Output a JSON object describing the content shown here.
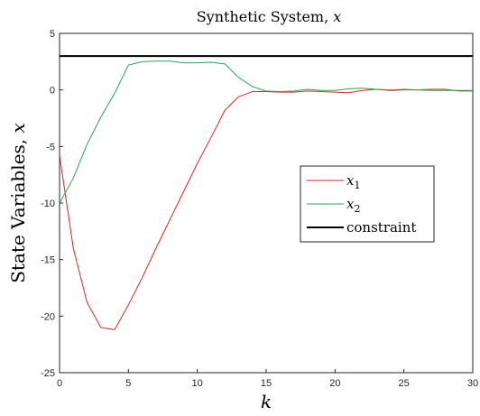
{
  "chart_data": {
    "type": "line",
    "title": "Synthetic System, ",
    "title_var": "x",
    "xlabel": "k",
    "ylabel": "State Variables, ",
    "ylabel_var": "x",
    "xlim": [
      0,
      30
    ],
    "ylim": [
      -25,
      5
    ],
    "xticks": [
      0,
      5,
      10,
      15,
      20,
      25,
      30
    ],
    "yticks": [
      5,
      0,
      -5,
      -10,
      -15,
      -20,
      -25
    ],
    "grid": false,
    "legend_position": "center-right",
    "x": [
      0,
      1,
      2,
      3,
      4,
      5,
      6,
      7,
      8,
      9,
      10,
      11,
      12,
      13,
      14,
      15,
      16,
      17,
      18,
      19,
      20,
      21,
      22,
      23,
      24,
      25,
      26,
      27,
      28,
      29,
      30
    ],
    "series": [
      {
        "name": "x",
        "subscript": "1",
        "color": "#d62728",
        "values": [
          -5.8,
          -14,
          -18.8,
          -21,
          -21.2,
          -19,
          -16.6,
          -14,
          -11.5,
          -9,
          -6.5,
          -4.2,
          -1.8,
          -0.6,
          -0.15,
          -0.15,
          -0.2,
          -0.2,
          -0.1,
          -0.15,
          -0.2,
          -0.25,
          -0.05,
          0.05,
          -0.05,
          0,
          0,
          0.05,
          0.05,
          -0.1,
          -0.1
        ]
      },
      {
        "name": "x",
        "subscript": "2",
        "color": "#2ca05a",
        "values": [
          -10,
          -7.8,
          -4.8,
          -2.4,
          -0.3,
          2.2,
          2.5,
          2.55,
          2.55,
          2.4,
          2.4,
          2.45,
          2.3,
          1.1,
          0.3,
          -0.1,
          -0.15,
          -0.1,
          0.05,
          -0.05,
          -0.05,
          0.1,
          0.15,
          0.05,
          0,
          0.05,
          0,
          -0.05,
          -0.05,
          -0.05,
          -0.05
        ]
      },
      {
        "name": "constraint",
        "subscript": "",
        "color": "#000000",
        "values": [
          3,
          3,
          3,
          3,
          3,
          3,
          3,
          3,
          3,
          3,
          3,
          3,
          3,
          3,
          3,
          3,
          3,
          3,
          3,
          3,
          3,
          3,
          3,
          3,
          3,
          3,
          3,
          3,
          3,
          3,
          3
        ]
      }
    ]
  }
}
